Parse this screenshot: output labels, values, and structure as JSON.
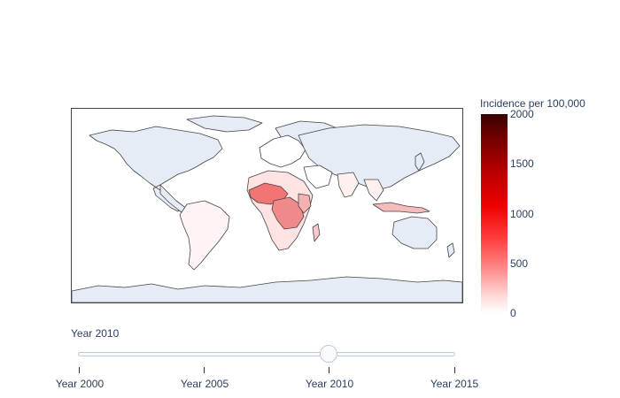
{
  "chart_data": {
    "type": "choropleth",
    "colorbar": {
      "title": "Incidence per 100,000",
      "range": [
        0,
        2000
      ],
      "ticks": [
        "0",
        "500",
        "1000",
        "1500",
        "2000"
      ],
      "colorscale": [
        "#ffffff",
        "#ffd6d6",
        "#ff8c8c",
        "#ff3b3b",
        "#ef0000",
        "#b50000",
        "#7a0000",
        "#3b0000"
      ]
    },
    "land_color": "#e5ecf6",
    "border_color": "#444444"
  },
  "slider": {
    "current_label": "Year 2010",
    "selected_index": 2,
    "steps": [
      "Year 2000",
      "Year 2005",
      "Year 2010",
      "Year 2015"
    ]
  }
}
